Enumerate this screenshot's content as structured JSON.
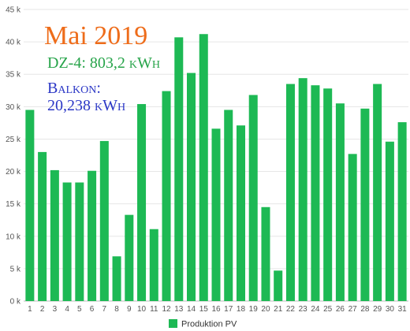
{
  "chart_data": {
    "type": "bar",
    "title": "Mai 2019",
    "annotations": [
      "DZ-4: 803,2 kWh",
      "Balkon:",
      "20,238 kWh"
    ],
    "categories": [
      "1",
      "2",
      "3",
      "4",
      "5",
      "6",
      "7",
      "8",
      "9",
      "10",
      "11",
      "12",
      "13",
      "14",
      "15",
      "16",
      "17",
      "18",
      "19",
      "20",
      "21",
      "22",
      "23",
      "24",
      "25",
      "26",
      "27",
      "28",
      "29",
      "30",
      "31"
    ],
    "series": [
      {
        "name": "Produktion PV",
        "values": [
          29.5,
          23.0,
          20.2,
          18.3,
          18.3,
          20.1,
          24.7,
          6.9,
          13.3,
          30.4,
          11.1,
          32.4,
          40.7,
          35.2,
          41.2,
          26.6,
          29.5,
          27.1,
          31.8,
          14.5,
          4.7,
          33.5,
          34.4,
          33.3,
          32.8,
          30.5,
          22.7,
          29.7,
          33.5,
          24.6,
          27.6
        ]
      }
    ],
    "ylim": [
      0,
      45
    ],
    "yticks": [
      0,
      5,
      10,
      15,
      20,
      25,
      30,
      35,
      40,
      45
    ],
    "ytick_labels": [
      "0 k",
      "5 k",
      "10 k",
      "15 k",
      "20 k",
      "25 k",
      "30 k",
      "35 k",
      "40 k",
      "45 k"
    ],
    "xlabel": "",
    "ylabel": "",
    "grid": true,
    "legend_position": "bottom-center",
    "colors": {
      "bar": "#1db954",
      "title": "#ee6c1a",
      "annotation_green": "#27a44a",
      "annotation_blue": "#2b37c6",
      "grid": "#e6e6e6"
    }
  }
}
